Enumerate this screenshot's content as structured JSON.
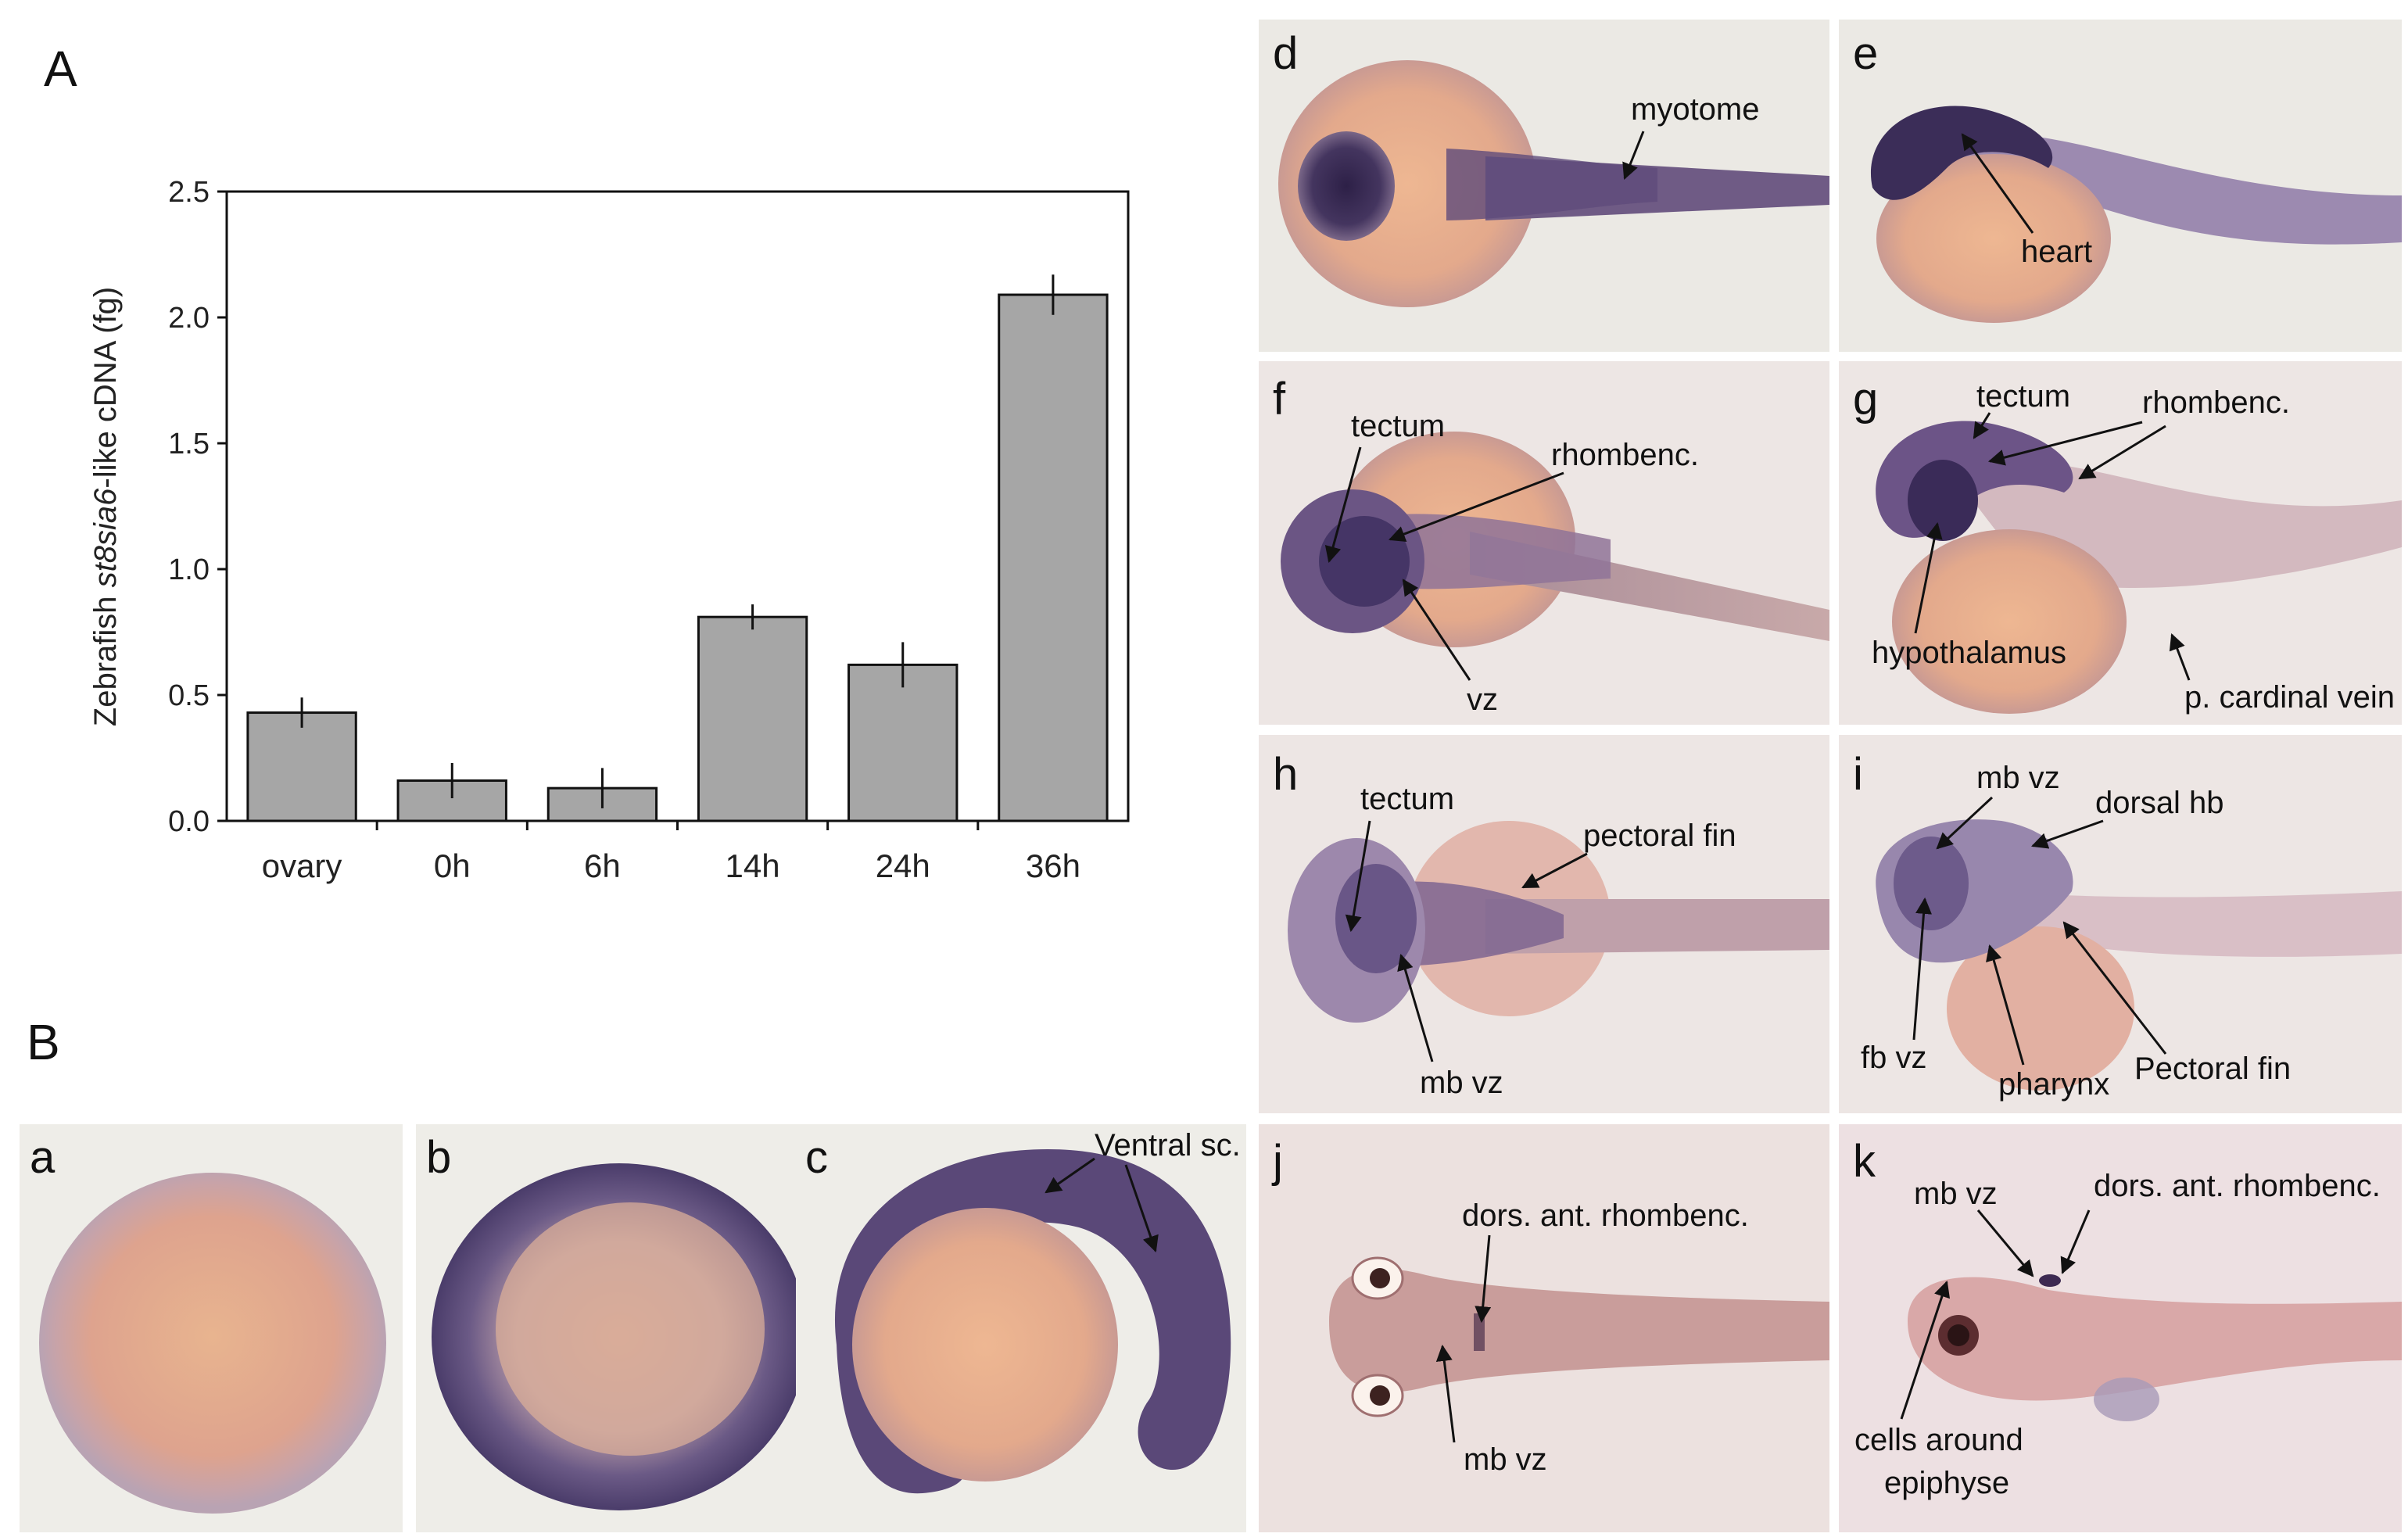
{
  "figure": {
    "section_a_label": "A",
    "section_b_label": "B"
  },
  "chart_data": {
    "type": "bar",
    "categories": [
      "ovary",
      "0h",
      "6h",
      "14h",
      "24h",
      "36h"
    ],
    "values": [
      0.43,
      0.16,
      0.13,
      0.81,
      0.62,
      2.09
    ],
    "errors": [
      0.06,
      0.07,
      0.08,
      0.05,
      0.09,
      0.08
    ],
    "ylabel_parts": [
      "Zebrafish ",
      "st8sia6",
      "-like cDNA (fg)"
    ],
    "ylim": [
      0,
      2.5
    ],
    "yticks": [
      "0.0",
      "0.5",
      "1.0",
      "1.5",
      "2.0",
      "2.5"
    ],
    "ytick_values": [
      0,
      0.5,
      1,
      1.5,
      2,
      2.5
    ],
    "grid": false,
    "bar_color": "#a6a6a6"
  },
  "panels": [
    {
      "id": "a",
      "letter": "a",
      "labels": []
    },
    {
      "id": "b",
      "letter": "b",
      "labels": []
    },
    {
      "id": "c",
      "letter": "c",
      "labels": [
        "Ventral sc."
      ]
    },
    {
      "id": "d",
      "letter": "d",
      "labels": [
        "myotome"
      ]
    },
    {
      "id": "e",
      "letter": "e",
      "labels": [
        "heart"
      ]
    },
    {
      "id": "f",
      "letter": "f",
      "labels": [
        "tectum",
        "rhombenc.",
        "vz"
      ]
    },
    {
      "id": "g",
      "letter": "g",
      "labels": [
        "tectum",
        "rhombenc.",
        "hypothalamus",
        "p. cardinal vein"
      ]
    },
    {
      "id": "h",
      "letter": "h",
      "labels": [
        "tectum",
        "pectoral fin",
        "mb vz"
      ]
    },
    {
      "id": "i",
      "letter": "i",
      "labels": [
        "mb vz",
        "dorsal hb",
        "fb vz",
        "pharynx",
        "Pectoral fin"
      ]
    },
    {
      "id": "j",
      "letter": "j",
      "labels": [
        "dors. ant. rhombenc.",
        "mb vz"
      ]
    },
    {
      "id": "k",
      "letter": "k",
      "labels": [
        "mb vz",
        "dors. ant. rhombenc.",
        "cells around",
        "epiphyse"
      ]
    }
  ],
  "colors": {
    "stain": "#3d2f5e",
    "yolk": "#e6ae8e",
    "background_light": "#ecebe6",
    "background_pink": "#eee0e0"
  }
}
